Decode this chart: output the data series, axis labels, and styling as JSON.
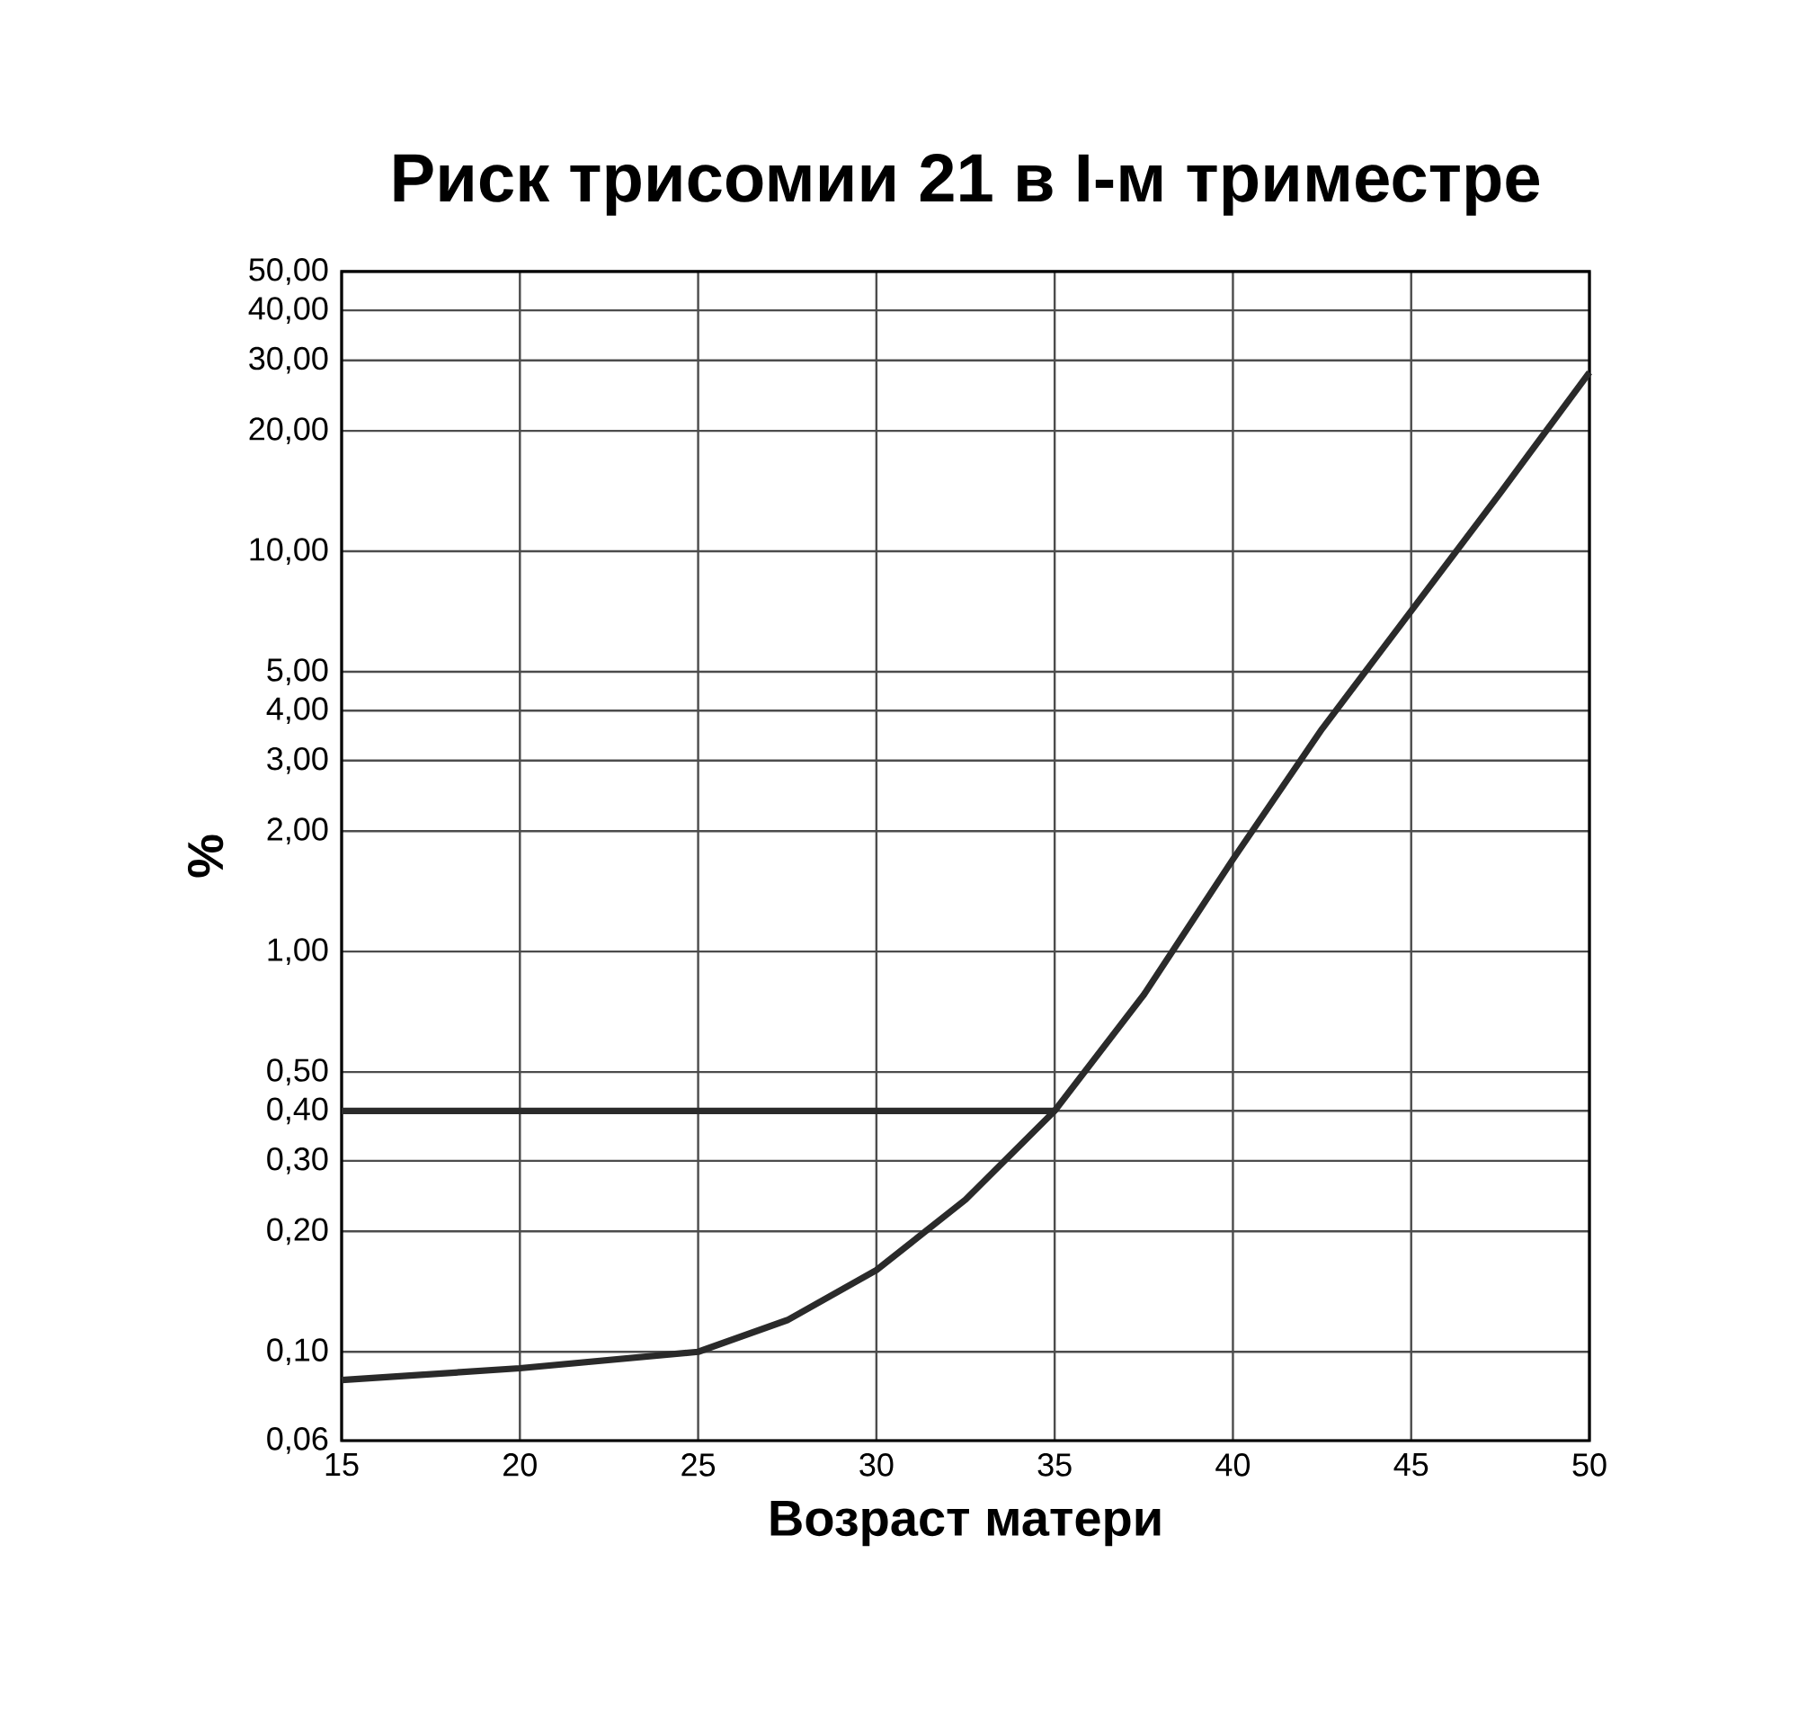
{
  "chart_data": {
    "type": "line",
    "title": "Риск трисомии 21 в I-м триместре",
    "xlabel": "Возраст матери",
    "ylabel": "%",
    "log": "y",
    "grid": true,
    "series": [
      {
        "color": "#2a2a2a",
        "x": [
          15,
          20,
          25,
          27.5,
          30,
          32.5,
          35,
          37.5,
          40,
          42.5,
          45,
          47.5,
          50
        ],
        "values": [
          0.085,
          0.091,
          0.1,
          0.12,
          0.16,
          0.24,
          0.4,
          0.78,
          1.7,
          3.6,
          7.1,
          14,
          28
        ]
      },
      {
        "color": "#2a2a2a",
        "x": [
          15,
          35
        ],
        "values": [
          0.4,
          0.4
        ]
      }
    ],
    "xlim": [
      15,
      50
    ],
    "xticks": [
      15,
      20,
      25,
      30,
      35,
      40,
      45,
      50
    ],
    "ylim": [
      0.06,
      50
    ],
    "yticks": [
      {
        "value": 0.06,
        "label": "0,06"
      },
      {
        "value": 0.1,
        "label": "0,10"
      },
      {
        "value": 0.2,
        "label": "0,20"
      },
      {
        "value": 0.3,
        "label": "0,30"
      },
      {
        "value": 0.4,
        "label": "0,40"
      },
      {
        "value": 0.5,
        "label": "0,50"
      },
      {
        "value": 1,
        "label": "1,00"
      },
      {
        "value": 2,
        "label": "2,00"
      },
      {
        "value": 3,
        "label": "3,00"
      },
      {
        "value": 4,
        "label": "4,00"
      },
      {
        "value": 5,
        "label": "5,00"
      },
      {
        "value": 10,
        "label": "10,00"
      },
      {
        "value": 20,
        "label": "20,00"
      },
      {
        "value": 30,
        "label": "30,00"
      },
      {
        "value": 40,
        "label": "40,00"
      },
      {
        "value": 50,
        "label": "50,00"
      }
    ]
  }
}
